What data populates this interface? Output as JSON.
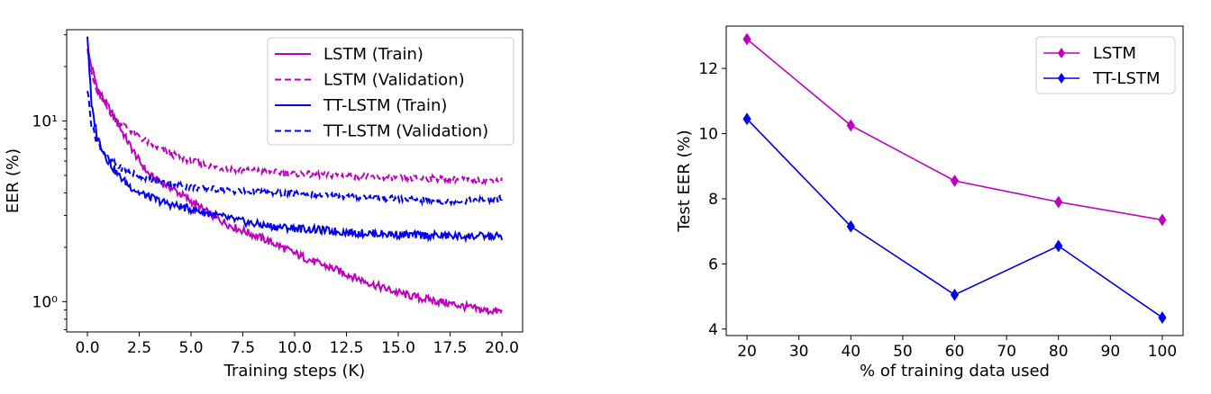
{
  "chart_data": [
    {
      "type": "line",
      "xlabel": "Training steps (K)",
      "ylabel": "EER (%)",
      "xlim": [
        -1.0,
        21.0
      ],
      "ylim": [
        0.68,
        32
      ],
      "yscale": "log",
      "x_ticks": [
        0.0,
        2.5,
        5.0,
        7.5,
        10.0,
        12.5,
        15.0,
        17.5,
        20.0
      ],
      "x_tick_labels": [
        "0.0",
        "2.5",
        "5.0",
        "7.5",
        "10.0",
        "12.5",
        "15.0",
        "17.5",
        "20.0"
      ],
      "y_ticks": [
        1,
        10
      ],
      "y_tick_labels": [
        "10⁰",
        "10¹"
      ],
      "legend_position": "top-right",
      "series": [
        {
          "name": "LSTM (Train)",
          "color": "#bf00bf",
          "style": "solid",
          "x": [
            0,
            0.2,
            0.5,
            1.0,
            1.5,
            2.0,
            2.5,
            3.0,
            3.5,
            4.0,
            5.0,
            6.0,
            7.0,
            8.0,
            9.0,
            10.0,
            11.0,
            12.0,
            13.0,
            14.0,
            15.0,
            16.0,
            17.0,
            18.0,
            19.0,
            20.0
          ],
          "values": [
            25,
            20,
            15,
            12,
            9.5,
            7.5,
            6.0,
            5.0,
            4.6,
            4.3,
            3.6,
            3.0,
            2.6,
            2.35,
            2.1,
            1.85,
            1.65,
            1.5,
            1.35,
            1.22,
            1.12,
            1.05,
            1.0,
            0.95,
            0.9,
            0.88
          ]
        },
        {
          "name": "LSTM (Validation)",
          "color": "#bf00bf",
          "style": "dashed",
          "x": [
            0,
            0.2,
            0.5,
            1.0,
            1.5,
            2.0,
            2.5,
            3.0,
            3.5,
            4.0,
            5.0,
            6.0,
            7.0,
            8.0,
            9.0,
            10.0,
            11.0,
            12.0,
            13.0,
            14.0,
            15.0,
            16.0,
            17.0,
            18.0,
            19.0,
            20.0
          ],
          "values": [
            26,
            18,
            14,
            11.5,
            10,
            9.0,
            8.2,
            7.5,
            7.0,
            6.6,
            6.0,
            5.6,
            5.4,
            5.3,
            5.2,
            5.1,
            5.05,
            5.0,
            4.95,
            4.9,
            4.85,
            4.8,
            4.8,
            4.75,
            4.7,
            4.7
          ]
        },
        {
          "name": "TT-LSTM (Train)",
          "color": "#0000ee",
          "style": "solid",
          "x": [
            0,
            0.2,
            0.5,
            1.0,
            1.5,
            2.0,
            2.5,
            3.0,
            3.5,
            4.0,
            5.0,
            6.0,
            7.0,
            8.0,
            9.0,
            10.0,
            11.0,
            12.0,
            13.0,
            14.0,
            15.0,
            16.0,
            17.0,
            18.0,
            19.0,
            20.0
          ],
          "values": [
            30,
            12,
            8.0,
            6.0,
            5.0,
            4.4,
            4.0,
            3.8,
            3.6,
            3.45,
            3.25,
            3.05,
            2.85,
            2.7,
            2.6,
            2.55,
            2.5,
            2.45,
            2.4,
            2.38,
            2.35,
            2.33,
            2.32,
            2.3,
            2.3,
            2.3
          ]
        },
        {
          "name": "TT-LSTM (Validation)",
          "color": "#0000ee",
          "style": "dashed",
          "x": [
            0,
            0.2,
            0.5,
            1.0,
            1.5,
            2.0,
            2.5,
            3.0,
            3.5,
            4.0,
            5.0,
            6.0,
            7.0,
            8.0,
            9.0,
            10.0,
            11.0,
            12.0,
            13.0,
            14.0,
            15.0,
            16.0,
            17.0,
            18.0,
            19.0,
            20.0
          ],
          "values": [
            15,
            9.5,
            7.5,
            6.2,
            5.6,
            5.2,
            5.0,
            4.8,
            4.6,
            4.5,
            4.3,
            4.2,
            4.1,
            4.05,
            4.0,
            3.95,
            3.9,
            3.85,
            3.8,
            3.75,
            3.7,
            3.65,
            3.6,
            3.6,
            3.65,
            3.7
          ]
        }
      ]
    },
    {
      "type": "line",
      "xlabel": "% of training data used",
      "ylabel": "Test EER (%)",
      "xlim": [
        16,
        104
      ],
      "ylim": [
        3.8,
        13.3
      ],
      "x_ticks": [
        20,
        30,
        40,
        50,
        60,
        70,
        80,
        90,
        100
      ],
      "y_ticks": [
        4,
        6,
        8,
        10,
        12
      ],
      "marker": "diamond",
      "legend_position": "top-right",
      "x": [
        20,
        40,
        60,
        80,
        100
      ],
      "series": [
        {
          "name": "LSTM",
          "color": "#bf00bf",
          "values": [
            12.9,
            10.25,
            8.55,
            7.9,
            7.35
          ]
        },
        {
          "name": "TT-LSTM",
          "color": "#0000ee",
          "values": [
            10.45,
            7.15,
            5.05,
            6.55,
            4.35
          ]
        }
      ]
    }
  ]
}
